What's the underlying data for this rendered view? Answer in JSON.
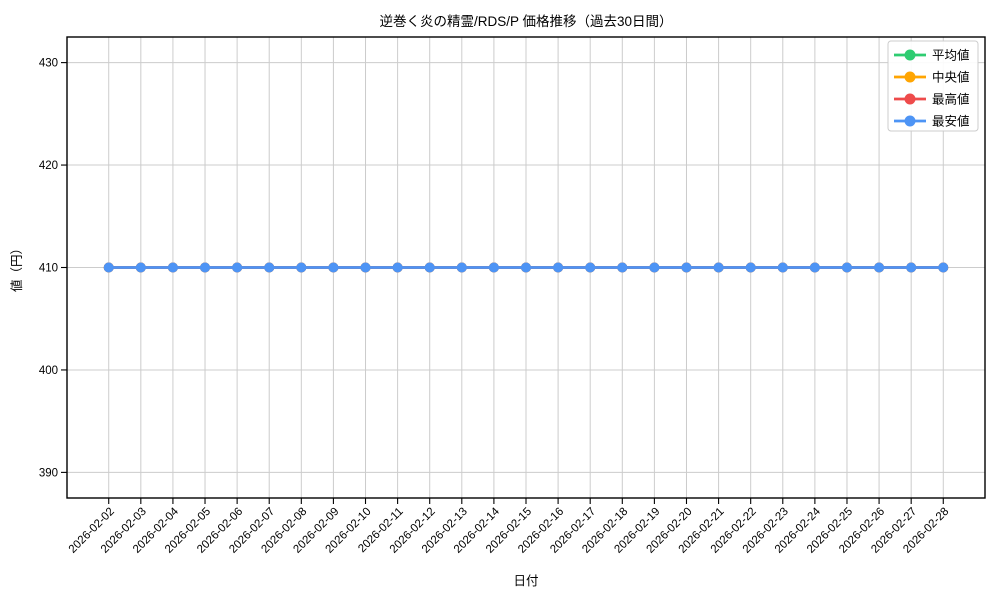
{
  "chart_data": {
    "type": "line",
    "title": "逆巻く炎の精霊/RDS/P 価格推移（過去30日間）",
    "xlabel": "日付",
    "ylabel": "値（円）",
    "categories": [
      "2026-02-02",
      "2026-02-03",
      "2026-02-04",
      "2026-02-05",
      "2026-02-06",
      "2026-02-07",
      "2026-02-08",
      "2026-02-09",
      "2026-02-10",
      "2026-02-11",
      "2026-02-12",
      "2026-02-13",
      "2026-02-14",
      "2026-02-15",
      "2026-02-16",
      "2026-02-17",
      "2026-02-18",
      "2026-02-19",
      "2026-02-20",
      "2026-02-21",
      "2026-02-22",
      "2026-02-23",
      "2026-02-24",
      "2026-02-25",
      "2026-02-26",
      "2026-02-27",
      "2026-02-28"
    ],
    "series": [
      {
        "name": "平均値",
        "color": "#2ecc71",
        "values": [
          410,
          410,
          410,
          410,
          410,
          410,
          410,
          410,
          410,
          410,
          410,
          410,
          410,
          410,
          410,
          410,
          410,
          410,
          410,
          410,
          410,
          410,
          410,
          410,
          410,
          410,
          410
        ]
      },
      {
        "name": "中央値",
        "color": "#ffa502",
        "values": [
          410,
          410,
          410,
          410,
          410,
          410,
          410,
          410,
          410,
          410,
          410,
          410,
          410,
          410,
          410,
          410,
          410,
          410,
          410,
          410,
          410,
          410,
          410,
          410,
          410,
          410,
          410
        ]
      },
      {
        "name": "最高値",
        "color": "#ee4b4b",
        "values": [
          410,
          410,
          410,
          410,
          410,
          410,
          410,
          410,
          410,
          410,
          410,
          410,
          410,
          410,
          410,
          410,
          410,
          410,
          410,
          410,
          410,
          410,
          410,
          410,
          410,
          410,
          410
        ]
      },
      {
        "name": "最安値",
        "color": "#4d94f5",
        "values": [
          410,
          410,
          410,
          410,
          410,
          410,
          410,
          410,
          410,
          410,
          410,
          410,
          410,
          410,
          410,
          410,
          410,
          410,
          410,
          410,
          410,
          410,
          410,
          410,
          410,
          410,
          410
        ]
      }
    ],
    "yticks": [
      390,
      400,
      410,
      420,
      430
    ],
    "ylim": [
      387.5,
      432.5
    ],
    "grid": true,
    "grid_color": "#cccccc",
    "spine_color": "#000000",
    "x_tick_rotation": 45,
    "legend_position": "upper right"
  }
}
